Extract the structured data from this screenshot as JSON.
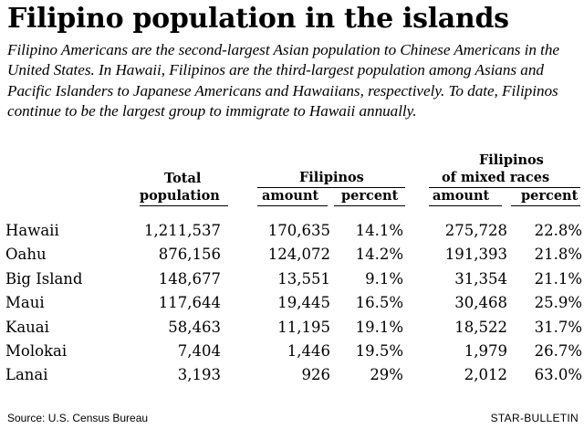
{
  "title": "Filipino population in the islands",
  "intro": "Filipino Americans are the second-largest Asian population to Chinese Americans in the United States. In Hawaii, Filipinos are the third-largest population among Asians and Pacific Islanders to Japanese Americans and Hawaiians, respectively. To date, Filipinos continue to be the largest group to immigrate to Hawaii annually.",
  "headers": {
    "total_line1": "Total",
    "total_line2": "population",
    "filipinos": "Filipinos",
    "mixed_line1": "Filipinos",
    "mixed_line2": "of mixed races",
    "amount": "amount",
    "percent": "percent"
  },
  "rows": [
    {
      "place": "Hawaii",
      "total": "1,211,537",
      "fil_amount": "170,635",
      "fil_percent": "14.1%",
      "mix_amount": "275,728",
      "mix_percent": "22.8%"
    },
    {
      "place": "Oahu",
      "total": "876,156",
      "fil_amount": "124,072",
      "fil_percent": "14.2%",
      "mix_amount": "191,393",
      "mix_percent": "21.8%"
    },
    {
      "place": "Big Island",
      "total": "148,677",
      "fil_amount": "13,551",
      "fil_percent": "9.1%",
      "mix_amount": "31,354",
      "mix_percent": "21.1%"
    },
    {
      "place": "Maui",
      "total": "117,644",
      "fil_amount": "19,445",
      "fil_percent": "16.5%",
      "mix_amount": "30,468",
      "mix_percent": "25.9%"
    },
    {
      "place": "Kauai",
      "total": "58,463",
      "fil_amount": "11,195",
      "fil_percent": "19.1%",
      "mix_amount": "18,522",
      "mix_percent": "31.7%"
    },
    {
      "place": "Molokai",
      "total": "7,404",
      "fil_amount": "1,446",
      "fil_percent": "19.5%",
      "mix_amount": "1,979",
      "mix_percent": "26.7%"
    },
    {
      "place": "Lanai",
      "total": "3,193",
      "fil_amount": "926",
      "fil_percent": "29%",
      "mix_amount": "2,012",
      "mix_percent": "63.0%"
    }
  ],
  "source": "Source: U.S. Census Bureau",
  "credit": "STAR-BULLETIN"
}
